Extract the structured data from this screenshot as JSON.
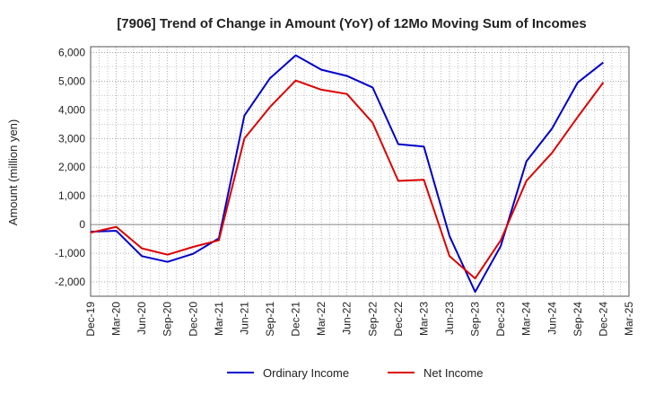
{
  "chart_data": {
    "type": "line",
    "title": "[7906]  Trend of Change in Amount (YoY) of 12Mo Moving Sum of Incomes",
    "ylabel": "Amount (million yen)",
    "xlabel": "",
    "ylim": [
      -2500,
      6200
    ],
    "y_ticks": [
      -2000,
      -1000,
      0,
      1000,
      2000,
      3000,
      4000,
      5000,
      6000
    ],
    "y_tick_labels": [
      "-2,000",
      "-1,000",
      "0",
      "1,000",
      "2,000",
      "3,000",
      "4,000",
      "5,000",
      "6,000"
    ],
    "x_tick_labels": [
      "Dec-19",
      "Mar-20",
      "Jun-20",
      "Sep-20",
      "Dec-20",
      "Mar-21",
      "Jun-21",
      "Sep-21",
      "Dec-21",
      "Mar-22",
      "Jun-22",
      "Sep-22",
      "Dec-22",
      "Mar-23",
      "Jun-23",
      "Sep-23",
      "Dec-23",
      "Mar-24",
      "Jun-24",
      "Sep-24",
      "Dec-24",
      "Mar-25"
    ],
    "grid": true,
    "legend_position": "bottom",
    "series": [
      {
        "name": "Ordinary Income",
        "color": "#0000cc",
        "values": [
          -250,
          -220,
          -1100,
          -1300,
          -1020,
          -480,
          3800,
          5100,
          5900,
          5400,
          5180,
          4780,
          2800,
          2720,
          -400,
          -2350,
          -750,
          2200,
          3350,
          4950,
          5650,
          null
        ]
      },
      {
        "name": "Net Income",
        "color": "#dd0000",
        "values": [
          -280,
          -80,
          -830,
          -1050,
          -780,
          -550,
          3000,
          4100,
          5020,
          4700,
          4550,
          3550,
          1520,
          1560,
          -1100,
          -1880,
          -550,
          1520,
          2500,
          3750,
          4950,
          null
        ]
      }
    ]
  }
}
